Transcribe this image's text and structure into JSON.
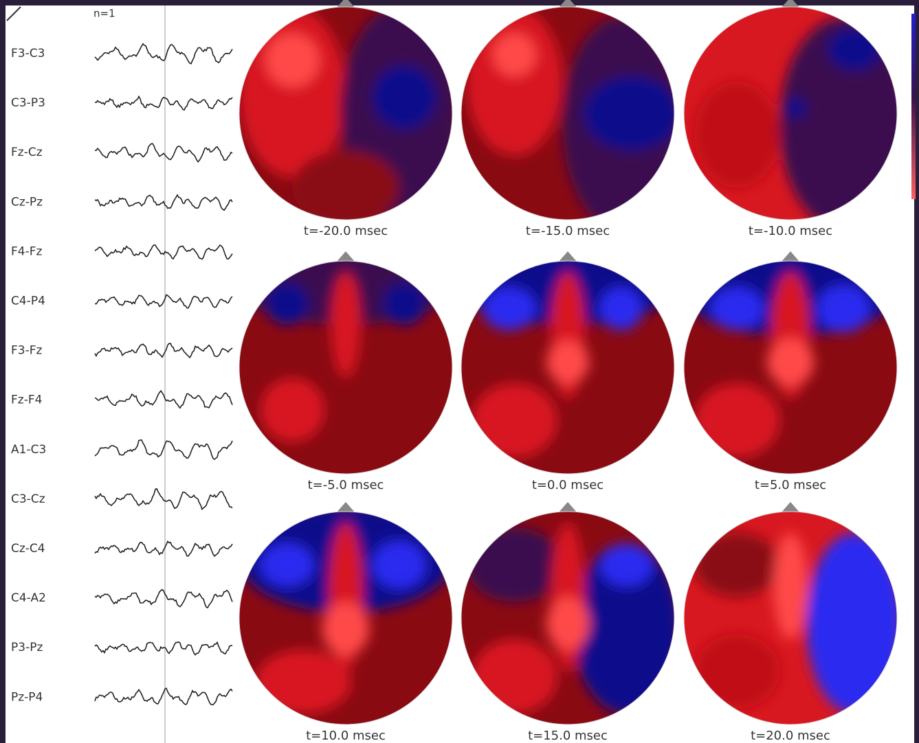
{
  "header": {
    "label": "n=1"
  },
  "channels": [
    "F3-C3",
    "C3-P3",
    "Fz-Cz",
    "Cz-Pz",
    "F4-Fz",
    "C4-P4",
    "F3-Fz",
    "Fz-F4",
    "A1-C3",
    "C3-Cz",
    "Cz-C4",
    "C4-A2",
    "P3-Pz",
    "Pz-P4"
  ],
  "maps": [
    {
      "label": "t=-20.0 msec"
    },
    {
      "label": "t=-15.0 msec"
    },
    {
      "label": "t=-10.0 msec"
    },
    {
      "label": "t=-5.0 msec"
    },
    {
      "label": "t=0.0 msec"
    },
    {
      "label": "t=5.0 msec"
    },
    {
      "label": "t=10.0 msec"
    },
    {
      "label": "t=15.0 msec"
    },
    {
      "label": "t=20.0 msec"
    }
  ]
}
